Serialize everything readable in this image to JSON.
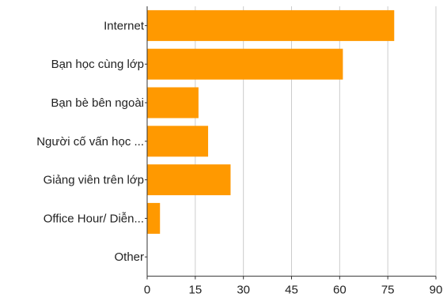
{
  "chart_data": {
    "type": "bar",
    "orientation": "horizontal",
    "title": "",
    "xlabel": "",
    "ylabel": "",
    "categories": [
      "Internet",
      "Bạn học cùng lớp",
      "Bạn bè bên ngoài",
      "Người cố vấn học ...",
      "Giảng viên trên lớp",
      "Office Hour/ Diễn...",
      "Other"
    ],
    "values": [
      77,
      61,
      16,
      19,
      26,
      4,
      0
    ],
    "xlim": [
      0,
      90
    ],
    "xticks": [
      0,
      15,
      30,
      45,
      60,
      75,
      90
    ],
    "bar_color": "#FF9900",
    "axis_color": "#333333",
    "grid": true,
    "grid_color": "#cccccc",
    "legend": "none"
  }
}
